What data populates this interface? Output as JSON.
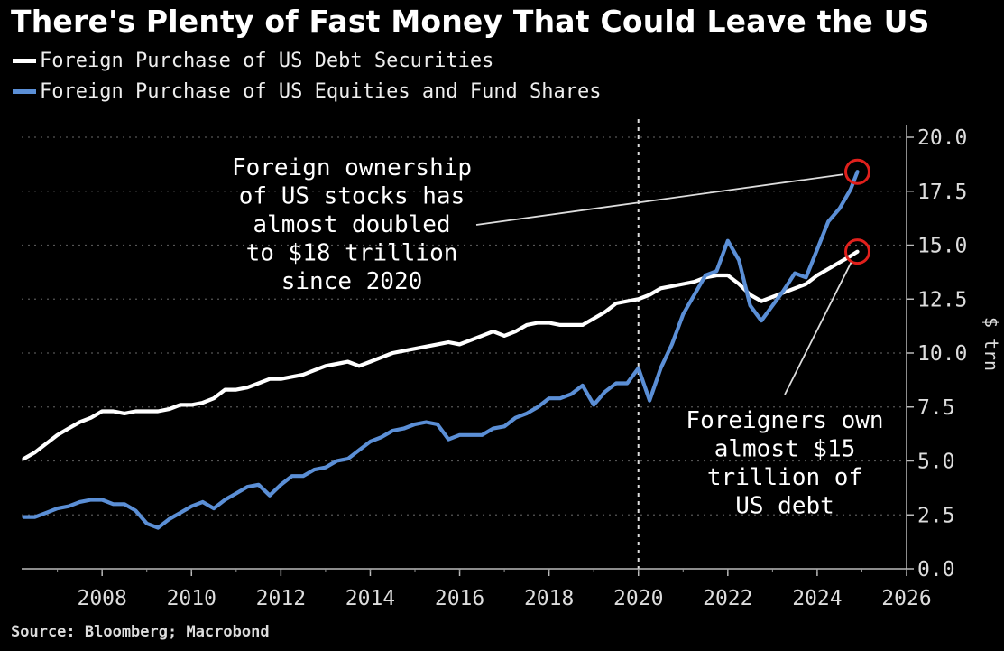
{
  "chart_data": {
    "type": "line",
    "title": "There's Plenty of Fast Money That Could Leave the US",
    "ylabel": "$ trn",
    "xlabel": "",
    "xlim": [
      2006.2,
      2026
    ],
    "ylim": [
      0,
      20
    ],
    "x_ticks": [
      "2008",
      "2010",
      "2012",
      "2014",
      "2016",
      "2018",
      "2020",
      "2022",
      "2024",
      "2026"
    ],
    "y_ticks": [
      "0.0",
      "2.5",
      "5.0",
      "7.5",
      "10.0",
      "12.5",
      "15.0",
      "17.5",
      "20.0"
    ],
    "grid": "horizontal dotted",
    "legend_position": "top-left",
    "vertical_marker_x": 2020,
    "series": [
      {
        "name": "Foreign Purchase of US Debt Securities",
        "color": "#ffffff",
        "x": [
          2006.25,
          2006.5,
          2006.75,
          2007.0,
          2007.25,
          2007.5,
          2007.75,
          2008.0,
          2008.25,
          2008.5,
          2008.75,
          2009.0,
          2009.25,
          2009.5,
          2009.75,
          2010.0,
          2010.25,
          2010.5,
          2010.75,
          2011.0,
          2011.25,
          2011.5,
          2011.75,
          2012.0,
          2012.25,
          2012.5,
          2012.75,
          2013.0,
          2013.25,
          2013.5,
          2013.75,
          2014.0,
          2014.25,
          2014.5,
          2014.75,
          2015.0,
          2015.25,
          2015.5,
          2015.75,
          2016.0,
          2016.25,
          2016.5,
          2016.75,
          2017.0,
          2017.25,
          2017.5,
          2017.75,
          2018.0,
          2018.25,
          2018.5,
          2018.75,
          2019.0,
          2019.25,
          2019.5,
          2019.75,
          2020.0,
          2020.25,
          2020.5,
          2020.75,
          2021.0,
          2021.25,
          2021.5,
          2021.75,
          2022.0,
          2022.25,
          2022.5,
          2022.75,
          2023.0,
          2023.25,
          2023.5,
          2023.75,
          2024.0,
          2024.25,
          2024.5,
          2024.75,
          2024.9
        ],
        "values": [
          5.1,
          5.4,
          5.8,
          6.2,
          6.5,
          6.8,
          7.0,
          7.3,
          7.3,
          7.2,
          7.3,
          7.3,
          7.3,
          7.4,
          7.6,
          7.6,
          7.7,
          7.9,
          8.3,
          8.3,
          8.4,
          8.6,
          8.8,
          8.8,
          8.9,
          9.0,
          9.2,
          9.4,
          9.5,
          9.6,
          9.4,
          9.6,
          9.8,
          10.0,
          10.1,
          10.2,
          10.3,
          10.4,
          10.5,
          10.4,
          10.6,
          10.8,
          11.0,
          10.8,
          11.0,
          11.3,
          11.4,
          11.4,
          11.3,
          11.3,
          11.3,
          11.6,
          11.9,
          12.3,
          12.4,
          12.5,
          12.7,
          13.0,
          13.1,
          13.2,
          13.3,
          13.5,
          13.6,
          13.6,
          13.2,
          12.7,
          12.4,
          12.6,
          12.8,
          13.0,
          13.2,
          13.6,
          13.9,
          14.2,
          14.5,
          14.7
        ]
      },
      {
        "name": "Foreign Purchase of US Equities and Fund Shares",
        "color": "#5b8fd6",
        "x": [
          2006.25,
          2006.5,
          2006.75,
          2007.0,
          2007.25,
          2007.5,
          2007.75,
          2008.0,
          2008.25,
          2008.5,
          2008.75,
          2009.0,
          2009.25,
          2009.5,
          2009.75,
          2010.0,
          2010.25,
          2010.5,
          2010.75,
          2011.0,
          2011.25,
          2011.5,
          2011.75,
          2012.0,
          2012.25,
          2012.5,
          2012.75,
          2013.0,
          2013.25,
          2013.5,
          2013.75,
          2014.0,
          2014.25,
          2014.5,
          2014.75,
          2015.0,
          2015.25,
          2015.5,
          2015.75,
          2016.0,
          2016.25,
          2016.5,
          2016.75,
          2017.0,
          2017.25,
          2017.5,
          2017.75,
          2018.0,
          2018.25,
          2018.5,
          2018.75,
          2019.0,
          2019.25,
          2019.5,
          2019.75,
          2020.0,
          2020.25,
          2020.5,
          2020.75,
          2021.0,
          2021.25,
          2021.5,
          2021.75,
          2022.0,
          2022.25,
          2022.5,
          2022.75,
          2023.0,
          2023.25,
          2023.5,
          2023.75,
          2024.0,
          2024.25,
          2024.5,
          2024.75,
          2024.9
        ],
        "values": [
          2.4,
          2.4,
          2.6,
          2.8,
          2.9,
          3.1,
          3.2,
          3.2,
          3.0,
          3.0,
          2.7,
          2.1,
          1.9,
          2.3,
          2.6,
          2.9,
          3.1,
          2.8,
          3.2,
          3.5,
          3.8,
          3.9,
          3.4,
          3.9,
          4.3,
          4.3,
          4.6,
          4.7,
          5.0,
          5.1,
          5.5,
          5.9,
          6.1,
          6.4,
          6.5,
          6.7,
          6.8,
          6.7,
          6.0,
          6.2,
          6.2,
          6.2,
          6.5,
          6.6,
          7.0,
          7.2,
          7.5,
          7.9,
          7.9,
          8.1,
          8.5,
          7.6,
          8.2,
          8.6,
          8.6,
          9.3,
          7.8,
          9.3,
          10.4,
          11.8,
          12.7,
          13.6,
          13.8,
          15.2,
          14.3,
          12.2,
          11.5,
          12.2,
          12.9,
          13.7,
          13.5,
          14.8,
          16.1,
          16.7,
          17.6,
          18.4
        ]
      }
    ],
    "highlights": [
      {
        "series": "Foreign Purchase of US Equities and Fund Shares",
        "x": 2024.9,
        "y": 18.4,
        "color": "#e0201c"
      },
      {
        "series": "Foreign Purchase of US Debt Securities",
        "x": 2024.9,
        "y": 14.7,
        "color": "#e0201c"
      }
    ],
    "annotations": [
      {
        "lines": [
          "Foreign ownership",
          "of US stocks has",
          "almost doubled",
          "to $18 trillion",
          "since 2020"
        ]
      },
      {
        "lines": [
          "Foreigners own",
          "almost $15",
          "trillion of",
          "US debt"
        ]
      }
    ]
  },
  "source": "Source: Bloomberg; Macrobond"
}
